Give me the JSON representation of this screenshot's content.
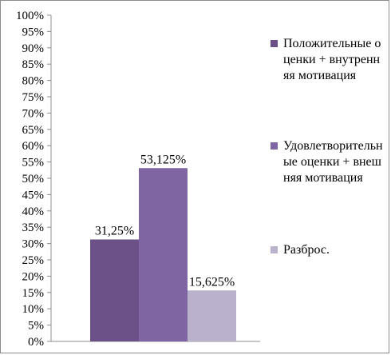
{
  "chart_data": {
    "type": "bar",
    "categories": [
      ""
    ],
    "series": [
      {
        "name": "Положительные оценки + внутренняя мотивация",
        "values": [
          31.25
        ],
        "label": "31,25%",
        "color": "#6b5187"
      },
      {
        "name": "Удовлетворительные оценки + внешняя мотивация",
        "values": [
          53.125
        ],
        "label": "53,125%",
        "color": "#7f66a3"
      },
      {
        "name": "Разброс.",
        "values": [
          15.625
        ],
        "label": "15,625%",
        "color": "#bab1cc"
      }
    ],
    "ylim": [
      0,
      100
    ],
    "y_ticks": [
      "0%",
      "5%",
      "10%",
      "15%",
      "20%",
      "25%",
      "30%",
      "35%",
      "40%",
      "45%",
      "50%",
      "55%",
      "60%",
      "65%",
      "70%",
      "75%",
      "80%",
      "85%",
      "90%",
      "95%",
      "100%"
    ],
    "grid": false,
    "legend_position": "right"
  },
  "legend": {
    "items": [
      {
        "text": "Положительные оценки + внутренняя мотивация"
      },
      {
        "text": "Удовлетворительные оценки + внешняя мотивация"
      },
      {
        "text": "Разброс."
      }
    ]
  }
}
